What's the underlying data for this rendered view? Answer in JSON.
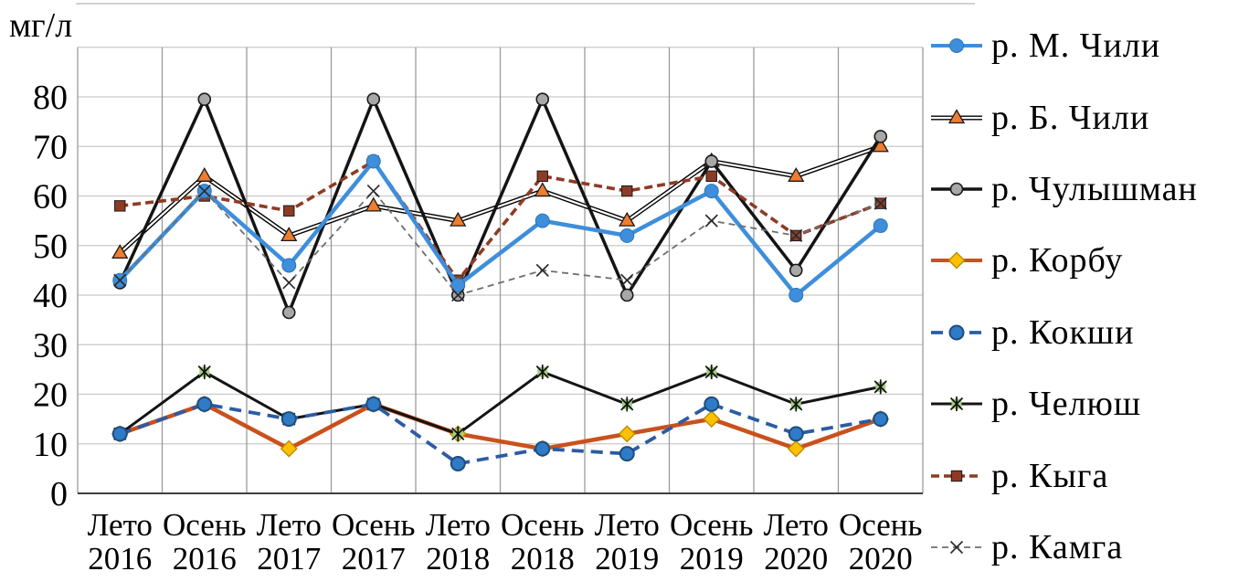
{
  "chart_data": {
    "type": "line",
    "title": "",
    "ylabel": "мг/л",
    "xlabel": "",
    "ylim": [
      0,
      90
    ],
    "yticks": [
      0,
      10,
      20,
      30,
      40,
      50,
      60,
      70,
      80
    ],
    "grid": true,
    "legend_position": "right",
    "categories": [
      {
        "season": "Лето",
        "year": "2016"
      },
      {
        "season": "Осень",
        "year": "2016"
      },
      {
        "season": "Лето",
        "year": "2017"
      },
      {
        "season": "Осень",
        "year": "2017"
      },
      {
        "season": "Лето",
        "year": "2018"
      },
      {
        "season": "Осень",
        "year": "2018"
      },
      {
        "season": "Лето",
        "year": "2019"
      },
      {
        "season": "Осень",
        "year": "2019"
      },
      {
        "season": "Лето",
        "year": "2020"
      },
      {
        "season": "Осень",
        "year": "2020"
      }
    ],
    "series": [
      {
        "name": "р. М. Чили",
        "values": [
          43,
          61,
          46,
          67,
          42,
          55,
          52,
          61,
          40,
          54
        ],
        "color": "#3E8EDB",
        "line": "solid",
        "width": 4.5,
        "marker": "circle",
        "marker_fill": "#3E8EDB",
        "marker_stroke": "#2E75B6",
        "marker_stroke_width": 1
      },
      {
        "name": "р. Б. Чили",
        "values": [
          48.5,
          64,
          52,
          58,
          55,
          61,
          55,
          67,
          64,
          70
        ],
        "color": "#000000",
        "line": "double",
        "width": 5,
        "marker": "triangle",
        "marker_fill": "#ED7D31",
        "marker_stroke": "#1a1a1a",
        "marker_stroke_width": 1.3
      },
      {
        "name": "р. Чулышман",
        "values": [
          42.5,
          79.5,
          36.5,
          79.5,
          40,
          79.5,
          40,
          67,
          45,
          72
        ],
        "color": "#141414",
        "line": "solid",
        "width": 3.5,
        "marker": "circle-gray",
        "marker_fill": "#A8A8A8",
        "marker_stroke": "#1a1a1a",
        "marker_stroke_width": 1.6
      },
      {
        "name": "р. Корбу",
        "values": [
          12,
          18,
          9,
          18,
          12,
          9,
          12,
          15,
          9,
          15
        ],
        "color": "#C9511C",
        "line": "solid",
        "width": 4.5,
        "marker": "diamond",
        "marker_fill": "#FFC000",
        "marker_stroke": "#BC8C00",
        "marker_stroke_width": 1.4
      },
      {
        "name": "р. Кокши",
        "values": [
          12,
          18,
          15,
          18,
          6,
          9,
          8,
          18,
          12,
          15
        ],
        "color": "#2B5CA3",
        "line": "dashed",
        "dash": "13 8",
        "width": 3.8,
        "marker": "circle",
        "marker_fill": "#2E7BC8",
        "marker_stroke": "#1F4E79",
        "marker_stroke_width": 2
      },
      {
        "name": "р. Челюш",
        "values": [
          12,
          24.5,
          15,
          18,
          12,
          24.5,
          18,
          24.5,
          18,
          21.5
        ],
        "color": "#141414",
        "line": "solid",
        "width": 3,
        "marker": "star",
        "marker_fill": "#A3CD83",
        "marker_stroke": "#111111",
        "marker_stroke_width": 1.7
      },
      {
        "name": "р. Кыга",
        "values": [
          58,
          60,
          57,
          67,
          43,
          64,
          61,
          64,
          52,
          58.5
        ],
        "color": "#8E3B26",
        "line": "dashed",
        "dash": "9 5",
        "width": 3.6,
        "marker": "square",
        "marker_fill": "#8E3B26",
        "marker_stroke": "#1a1a1a",
        "marker_stroke_width": 1
      },
      {
        "name": "р. Камга",
        "values": [
          43,
          61,
          42.5,
          61,
          40,
          45,
          43,
          55,
          52,
          58.5
        ],
        "color": "#6e6e6e",
        "line": "dashed",
        "dash": "7 5",
        "width": 1.8,
        "marker": "x",
        "marker_fill": "#2b2b2b",
        "marker_stroke": "#2b2b2b",
        "marker_stroke_width": 1.7
      }
    ],
    "draw_order": [
      1,
      2,
      3,
      5,
      6,
      0,
      4,
      7
    ]
  }
}
